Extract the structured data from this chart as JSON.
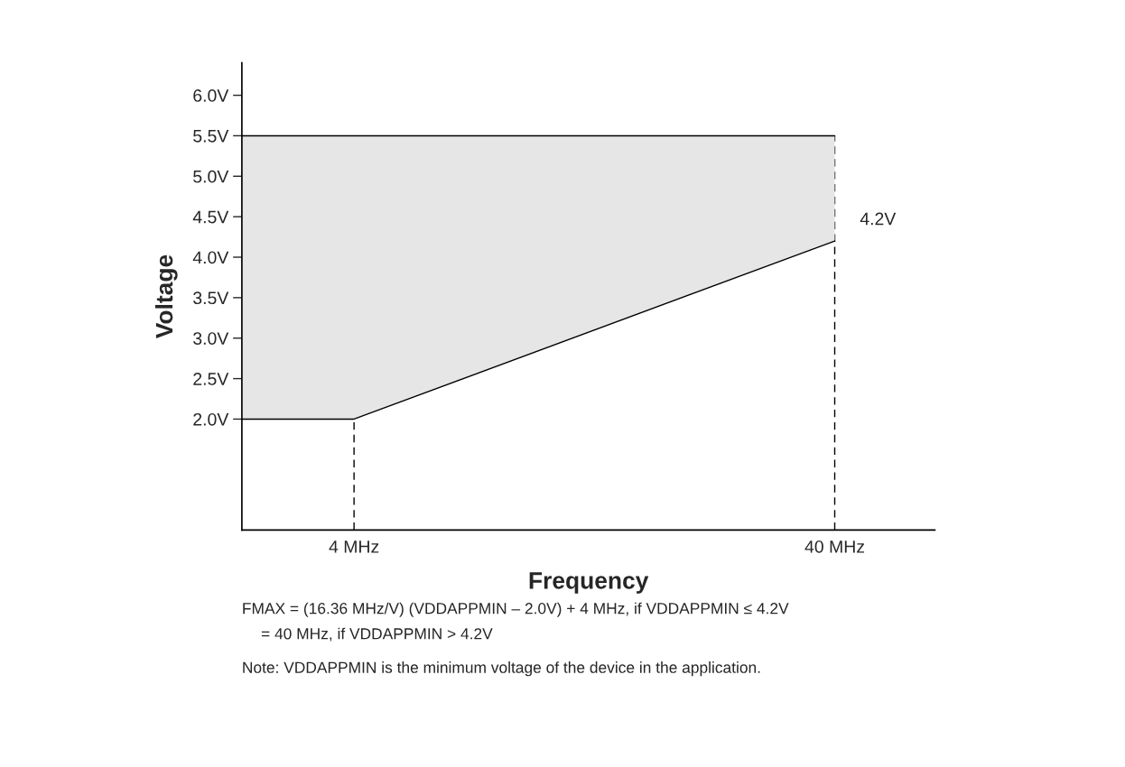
{
  "chart_data": {
    "type": "area",
    "xlabel": "Frequency",
    "ylabel": "Voltage",
    "x": [
      -4.4,
      4,
      40
    ],
    "series": [
      {
        "type": "line",
        "color": "#000000",
        "values": [
          2.0,
          2.0,
          4.2
        ]
      },
      {
        "color": "#e6e6e6",
        "values": [
          5.5,
          5.5,
          5.5
        ]
      }
    ],
    "xlim": [
      -4.4,
      47.5
    ],
    "ylim": [
      0.63,
      6.4
    ],
    "xticks": [
      {
        "value": 4,
        "label": "4 MHz"
      },
      {
        "value": 40,
        "label": "40 MHz"
      }
    ],
    "yticks": [
      {
        "value": 2.0,
        "label": "2.0V"
      },
      {
        "value": 2.5,
        "label": "2.5V"
      },
      {
        "value": 3.0,
        "label": "3.0V"
      },
      {
        "value": 3.5,
        "label": "3.5V"
      },
      {
        "value": 4.0,
        "label": "4.0V"
      },
      {
        "value": 4.5,
        "label": "4.5V"
      },
      {
        "value": 5.0,
        "label": "5.0V"
      },
      {
        "value": 5.5,
        "label": "5.5V"
      },
      {
        "value": 6.0,
        "label": "6.0V"
      }
    ],
    "ref_lines": [
      {
        "axis": "x",
        "value": 4,
        "line_style": "dashed",
        "color": "#000000"
      },
      {
        "axis": "x",
        "value": 40,
        "line_style": "dashed",
        "color": "#000000"
      }
    ],
    "annotations": [
      {
        "text": "4.2V",
        "x": 40,
        "y": 4.2
      },
      "FMAX = (16.36 MHz/V) (VDDAPPMIN – 2.0V) + 4 MHz, if VDDAPPMIN ≤ 4.2V",
      "= 40 MHz, if VDDAPPMIN > 4.2V",
      "Note: VDDAPPMIN is the minimum voltage of the device in the application."
    ],
    "grid": false,
    "legend": false
  }
}
